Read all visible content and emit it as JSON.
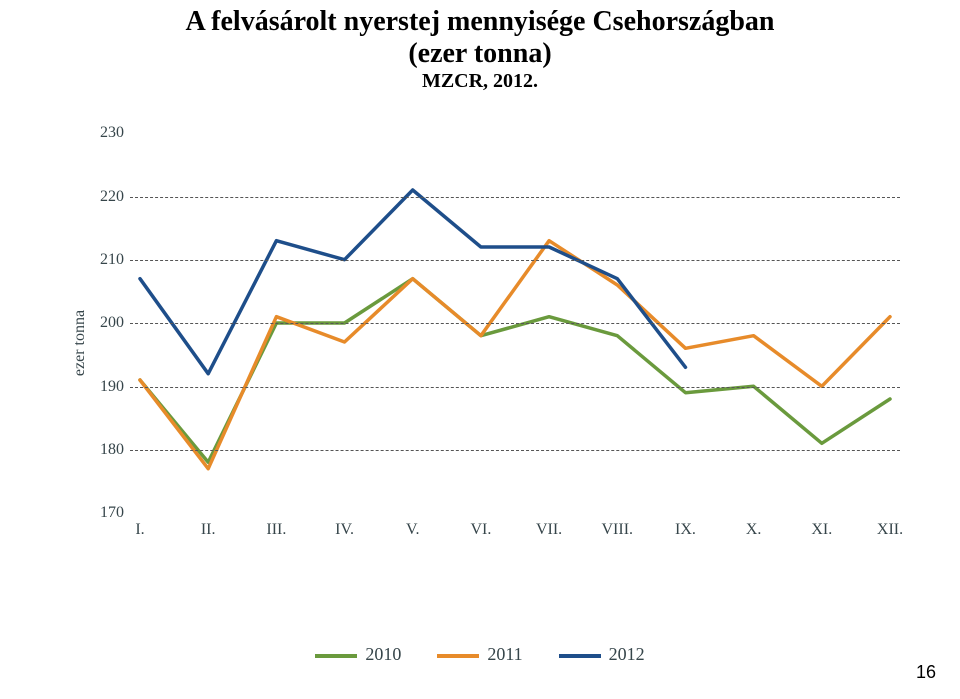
{
  "title": {
    "line1": "A felvásárolt nyerstej mennyisége Csehországban",
    "line2": "(ezer tonna)",
    "title_fontsize": 28,
    "title_weight": "bold"
  },
  "source": {
    "text": "MZCR, 2012.",
    "fontsize": 20,
    "weight": "bold"
  },
  "chart": {
    "type": "line",
    "background_color": "#ffffff",
    "grid_color": "#555555",
    "grid_style": "dashed",
    "axis_text_color": "#36454a",
    "ylabel": "ezer tonna",
    "label_fontsize": 16,
    "x_categories": [
      "I.",
      "II.",
      "III.",
      "IV.",
      "V.",
      "VI.",
      "VII.",
      "VIII.",
      "IX.",
      "X.",
      "XI.",
      "XII."
    ],
    "ylim": [
      170,
      230
    ],
    "yticks": [
      170,
      180,
      190,
      200,
      210,
      220,
      230
    ],
    "line_width": 3.5,
    "series": [
      {
        "name": "2010",
        "color": "#6a9a3d",
        "values": [
          191,
          178,
          200,
          200,
          207,
          198,
          201,
          198,
          189,
          190,
          181,
          188
        ]
      },
      {
        "name": "2011",
        "color": "#e78b2a",
        "values": [
          191,
          177,
          201,
          197,
          207,
          198,
          213,
          206,
          196,
          198,
          190,
          201
        ]
      },
      {
        "name": "2012",
        "color": "#1e4e8a",
        "values": [
          207,
          192,
          213,
          210,
          221,
          212,
          212,
          207,
          193
        ]
      }
    ]
  },
  "legend": {
    "items": [
      "2010",
      "2011",
      "2012"
    ],
    "colors": [
      "#6a9a3d",
      "#e78b2a",
      "#1e4e8a"
    ],
    "fontsize": 18,
    "text_color": "#36454a",
    "swatch_height": 4
  },
  "page_number": "16"
}
